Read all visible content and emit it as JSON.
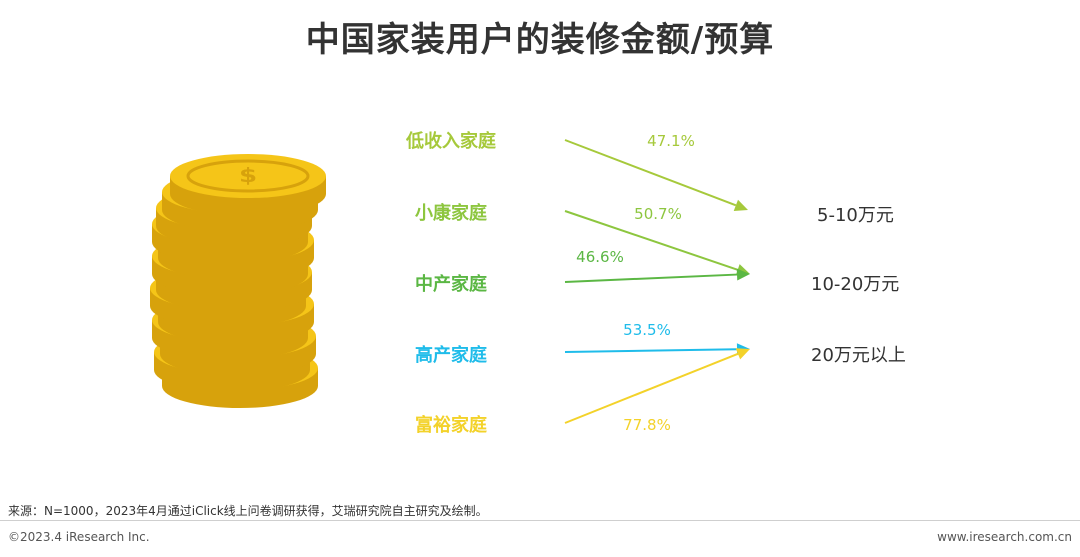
{
  "title": "中国家装用户的装修金额/预算",
  "colors": {
    "low_income": "#a6c93b",
    "well_off": "#8dc63f",
    "middle_class": "#5bb744",
    "high_asset": "#1fbcea",
    "wealthy": "#f3d22a",
    "coin_face": "#f5c518",
    "coin_edge": "#d7a20c"
  },
  "chart_data": {
    "type": "flow",
    "title": "中国家装用户的装修金额/预算",
    "sources": [
      "低收入家庭",
      "小康家庭",
      "中产家庭",
      "高产家庭",
      "富裕家庭"
    ],
    "targets": [
      "5-10万元",
      "10-20万元",
      "20万元以上"
    ],
    "links": [
      {
        "from": "低收入家庭",
        "to": "5-10万元",
        "value": 47.1,
        "label": "47.1%",
        "color": "#a6c93b"
      },
      {
        "from": "小康家庭",
        "to": "10-20万元",
        "value": 50.7,
        "label": "50.7%",
        "color": "#8dc63f"
      },
      {
        "from": "中产家庭",
        "to": "10-20万元",
        "value": 46.6,
        "label": "46.6%",
        "color": "#5bb744"
      },
      {
        "from": "高产家庭",
        "to": "20万元以上",
        "value": 53.5,
        "label": "53.5%",
        "color": "#1fbcea"
      },
      {
        "from": "富裕家庭",
        "to": "20万元以上",
        "value": 77.8,
        "label": "77.8%",
        "color": "#f3d22a"
      }
    ]
  },
  "coin_icon": "dollar-coin-stack-icon",
  "source_note": "来源：N=1000，2023年4月通过iClick线上问卷调研获得，艾瑞研究院自主研究及绘制。",
  "footer": {
    "copyright": "©2023.4 iResearch Inc.",
    "website": "www.iresearch.com.cn"
  }
}
